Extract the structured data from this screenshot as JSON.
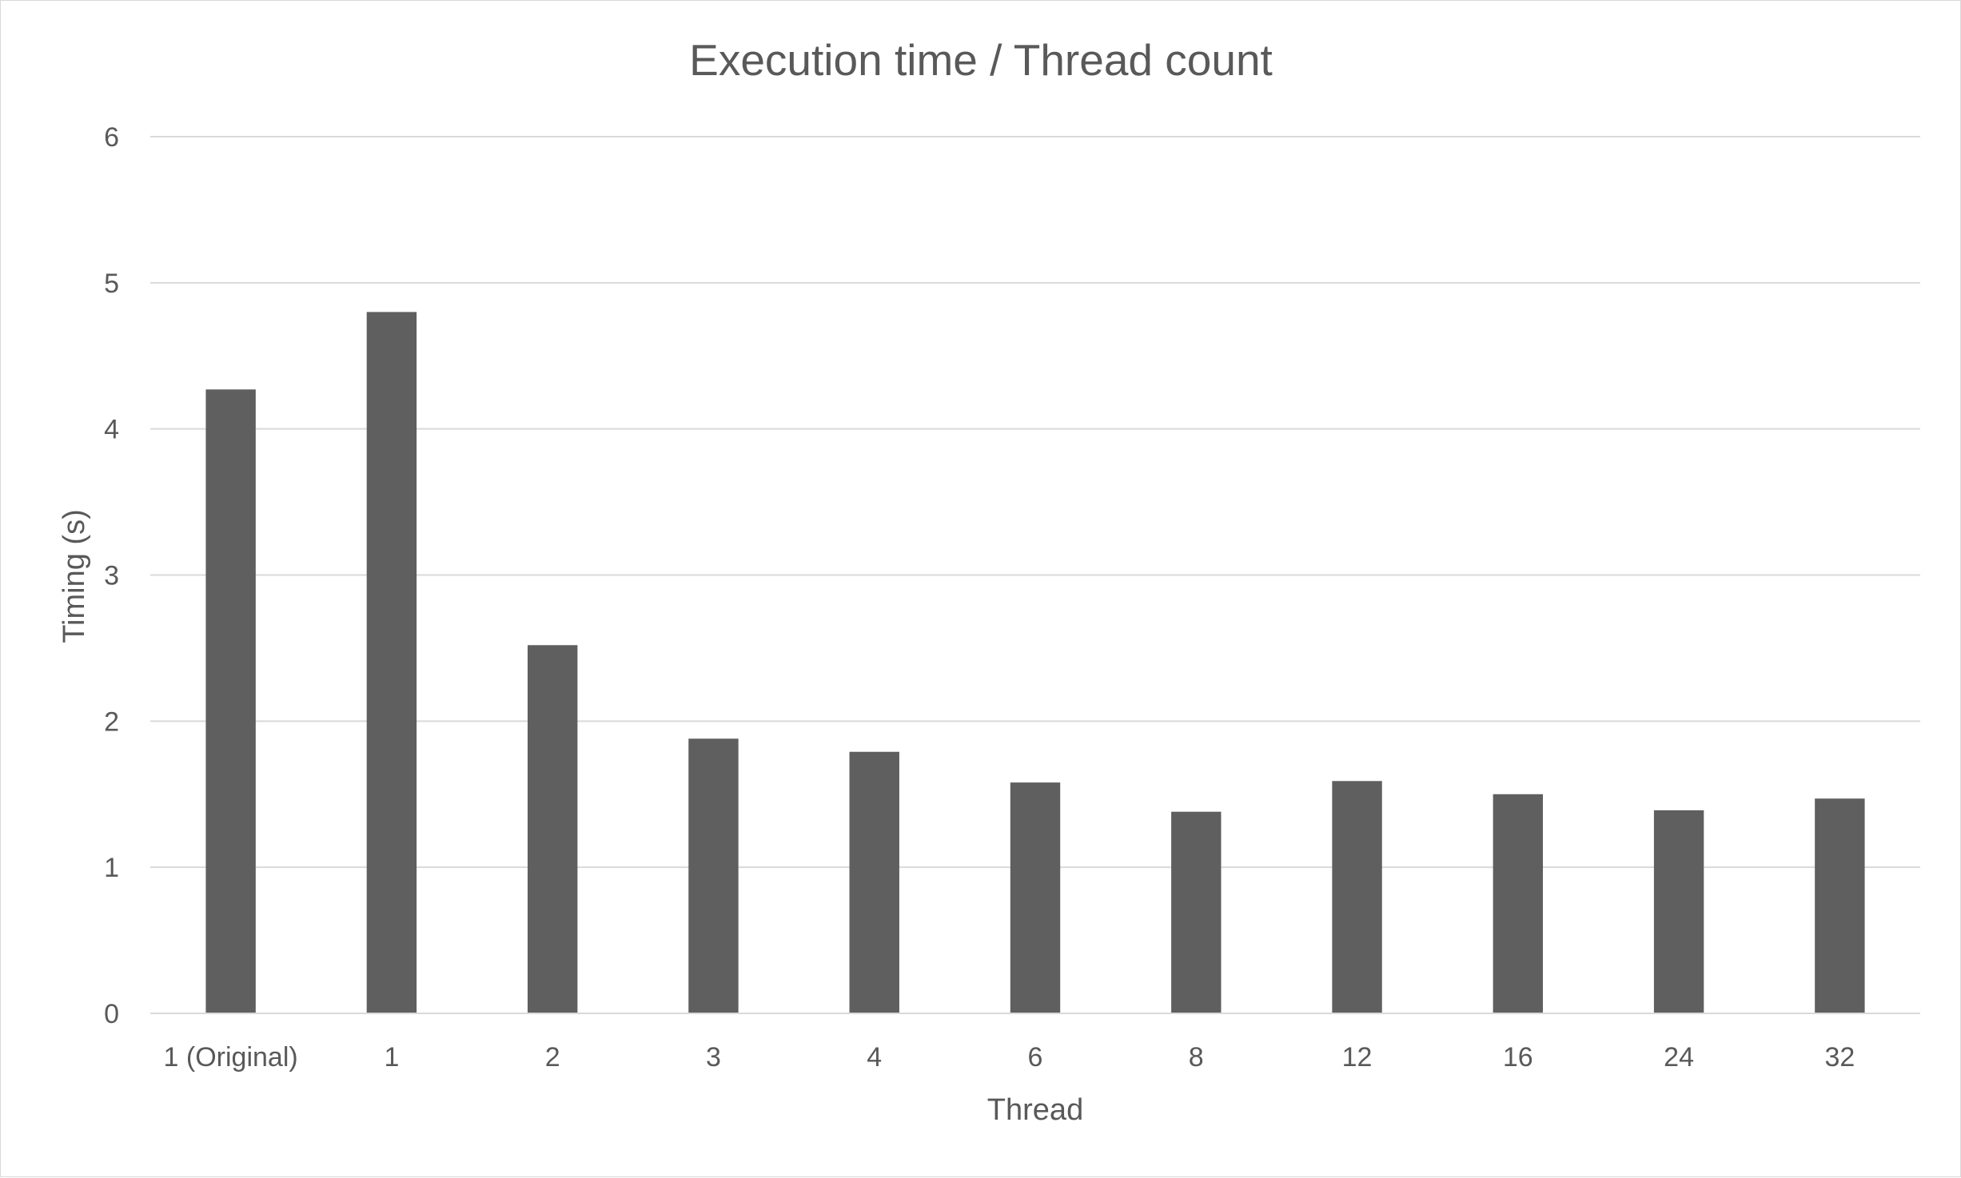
{
  "chart_data": {
    "type": "bar",
    "title": "Execution time / Thread count",
    "xlabel": "Thread",
    "ylabel": "Timing (s)",
    "categories": [
      "1 (Original)",
      "1",
      "2",
      "3",
      "4",
      "6",
      "8",
      "12",
      "16",
      "24",
      "32"
    ],
    "values": [
      4.27,
      4.8,
      2.52,
      1.88,
      1.79,
      1.58,
      1.38,
      1.59,
      1.5,
      1.39,
      1.47
    ],
    "ylim": [
      0,
      6
    ],
    "yticks": [
      0,
      1,
      2,
      3,
      4,
      5,
      6
    ],
    "grid": true,
    "legend": "none",
    "colors": {
      "bar": "#5f5f5f",
      "grid": "#d9d9d9",
      "text": "#595959"
    }
  }
}
